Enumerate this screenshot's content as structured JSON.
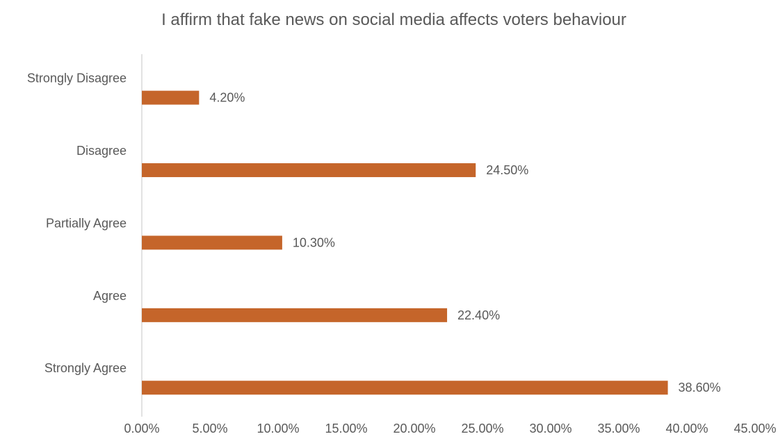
{
  "chart_data": {
    "type": "bar",
    "orientation": "horizontal",
    "title": "I affirm that fake news on social media affects voters behaviour",
    "xlabel": "",
    "ylabel": "",
    "categories": [
      "Strongly Disagree",
      "Disagree",
      "Partially Agree",
      "Agree",
      "Strongly Agree"
    ],
    "values": [
      4.2,
      24.5,
      10.3,
      22.4,
      38.6
    ],
    "data_labels": [
      "4.20%",
      "24.50%",
      "10.30%",
      "22.40%",
      "38.60%"
    ],
    "xlim": [
      0,
      45
    ],
    "x_ticks": [
      0,
      5,
      10,
      15,
      20,
      25,
      30,
      35,
      40,
      45
    ],
    "x_tick_labels": [
      "0.00%",
      "5.00%",
      "10.00%",
      "15.00%",
      "20.00%",
      "25.00%",
      "30.00%",
      "35.00%",
      "40.00%",
      "45.00%"
    ],
    "bar_color": "#C5652A",
    "axis_color": "#D9D9D9",
    "grid": false,
    "legend": "none"
  }
}
